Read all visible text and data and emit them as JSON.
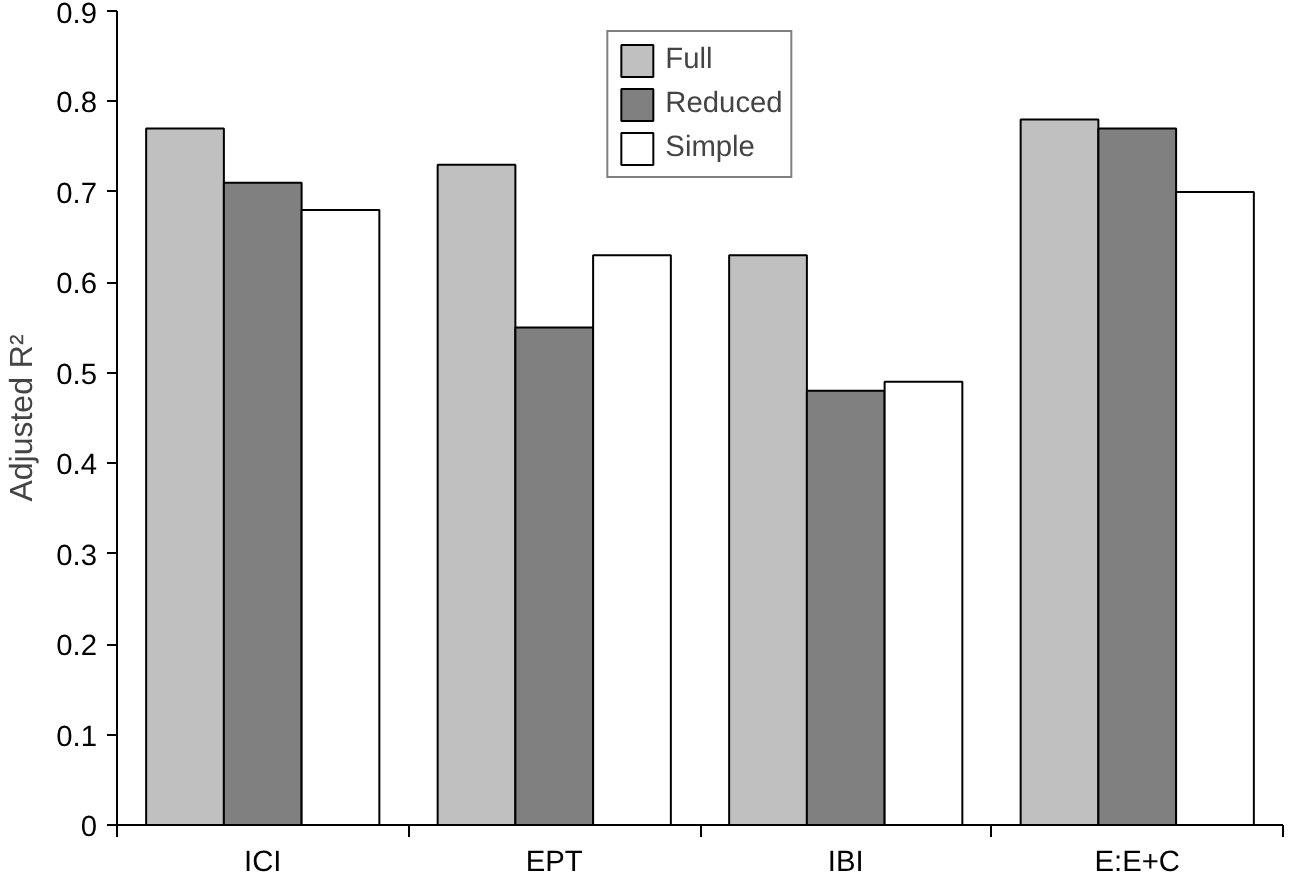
{
  "chart_data": {
    "type": "bar",
    "ylabel": "Adjusted R²",
    "categories": [
      "ICI",
      "EPT",
      "IBI",
      "E:E+C"
    ],
    "series": [
      {
        "name": "Full",
        "color": "#c0c0c0",
        "values": [
          0.77,
          0.73,
          0.63,
          0.78
        ]
      },
      {
        "name": "Reduced",
        "color": "#808080",
        "values": [
          0.71,
          0.55,
          0.48,
          0.77
        ]
      },
      {
        "name": "Simple",
        "color": "#ffffff",
        "values": [
          0.68,
          0.63,
          0.49,
          0.7
        ]
      }
    ],
    "ylim": [
      0,
      0.9
    ],
    "yticks": [
      0,
      0.1,
      0.2,
      0.3,
      0.4,
      0.5,
      0.6,
      0.7,
      0.8,
      0.9
    ],
    "grid": false,
    "legend": "top"
  }
}
